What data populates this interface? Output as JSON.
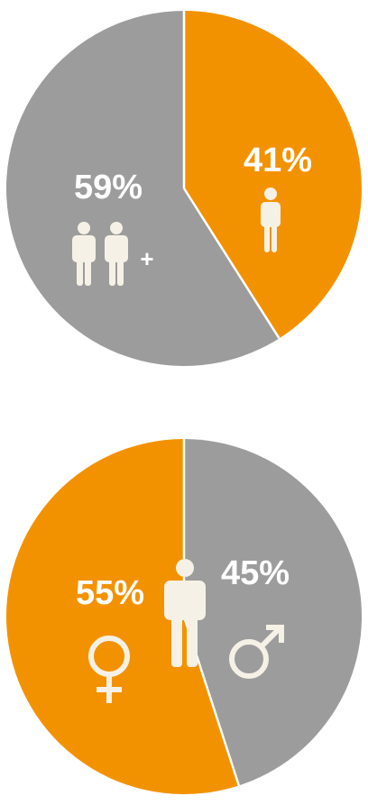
{
  "colors": {
    "orange": "#F39200",
    "grey": "#9C9C9C",
    "divider": "#FFFFFF",
    "icon": "#F6F1E6",
    "label": "#FFFFFF"
  },
  "chart_data": [
    {
      "type": "pie",
      "slices": [
        {
          "label": "41%",
          "value": 41,
          "color": "#F39200",
          "icon": "single-person-icon"
        },
        {
          "label": "59%",
          "value": 59,
          "color": "#9C9C9C",
          "icon": "two-persons-plus-icon",
          "icon_suffix": "+"
        }
      ]
    },
    {
      "type": "pie",
      "slices": [
        {
          "label": "45%",
          "value": 45,
          "color": "#9C9C9C",
          "icon": "male-symbol-icon"
        },
        {
          "label": "55%",
          "value": 55,
          "color": "#F39200",
          "icon": "female-symbol-icon"
        }
      ],
      "center_icon": "single-person-icon"
    }
  ]
}
